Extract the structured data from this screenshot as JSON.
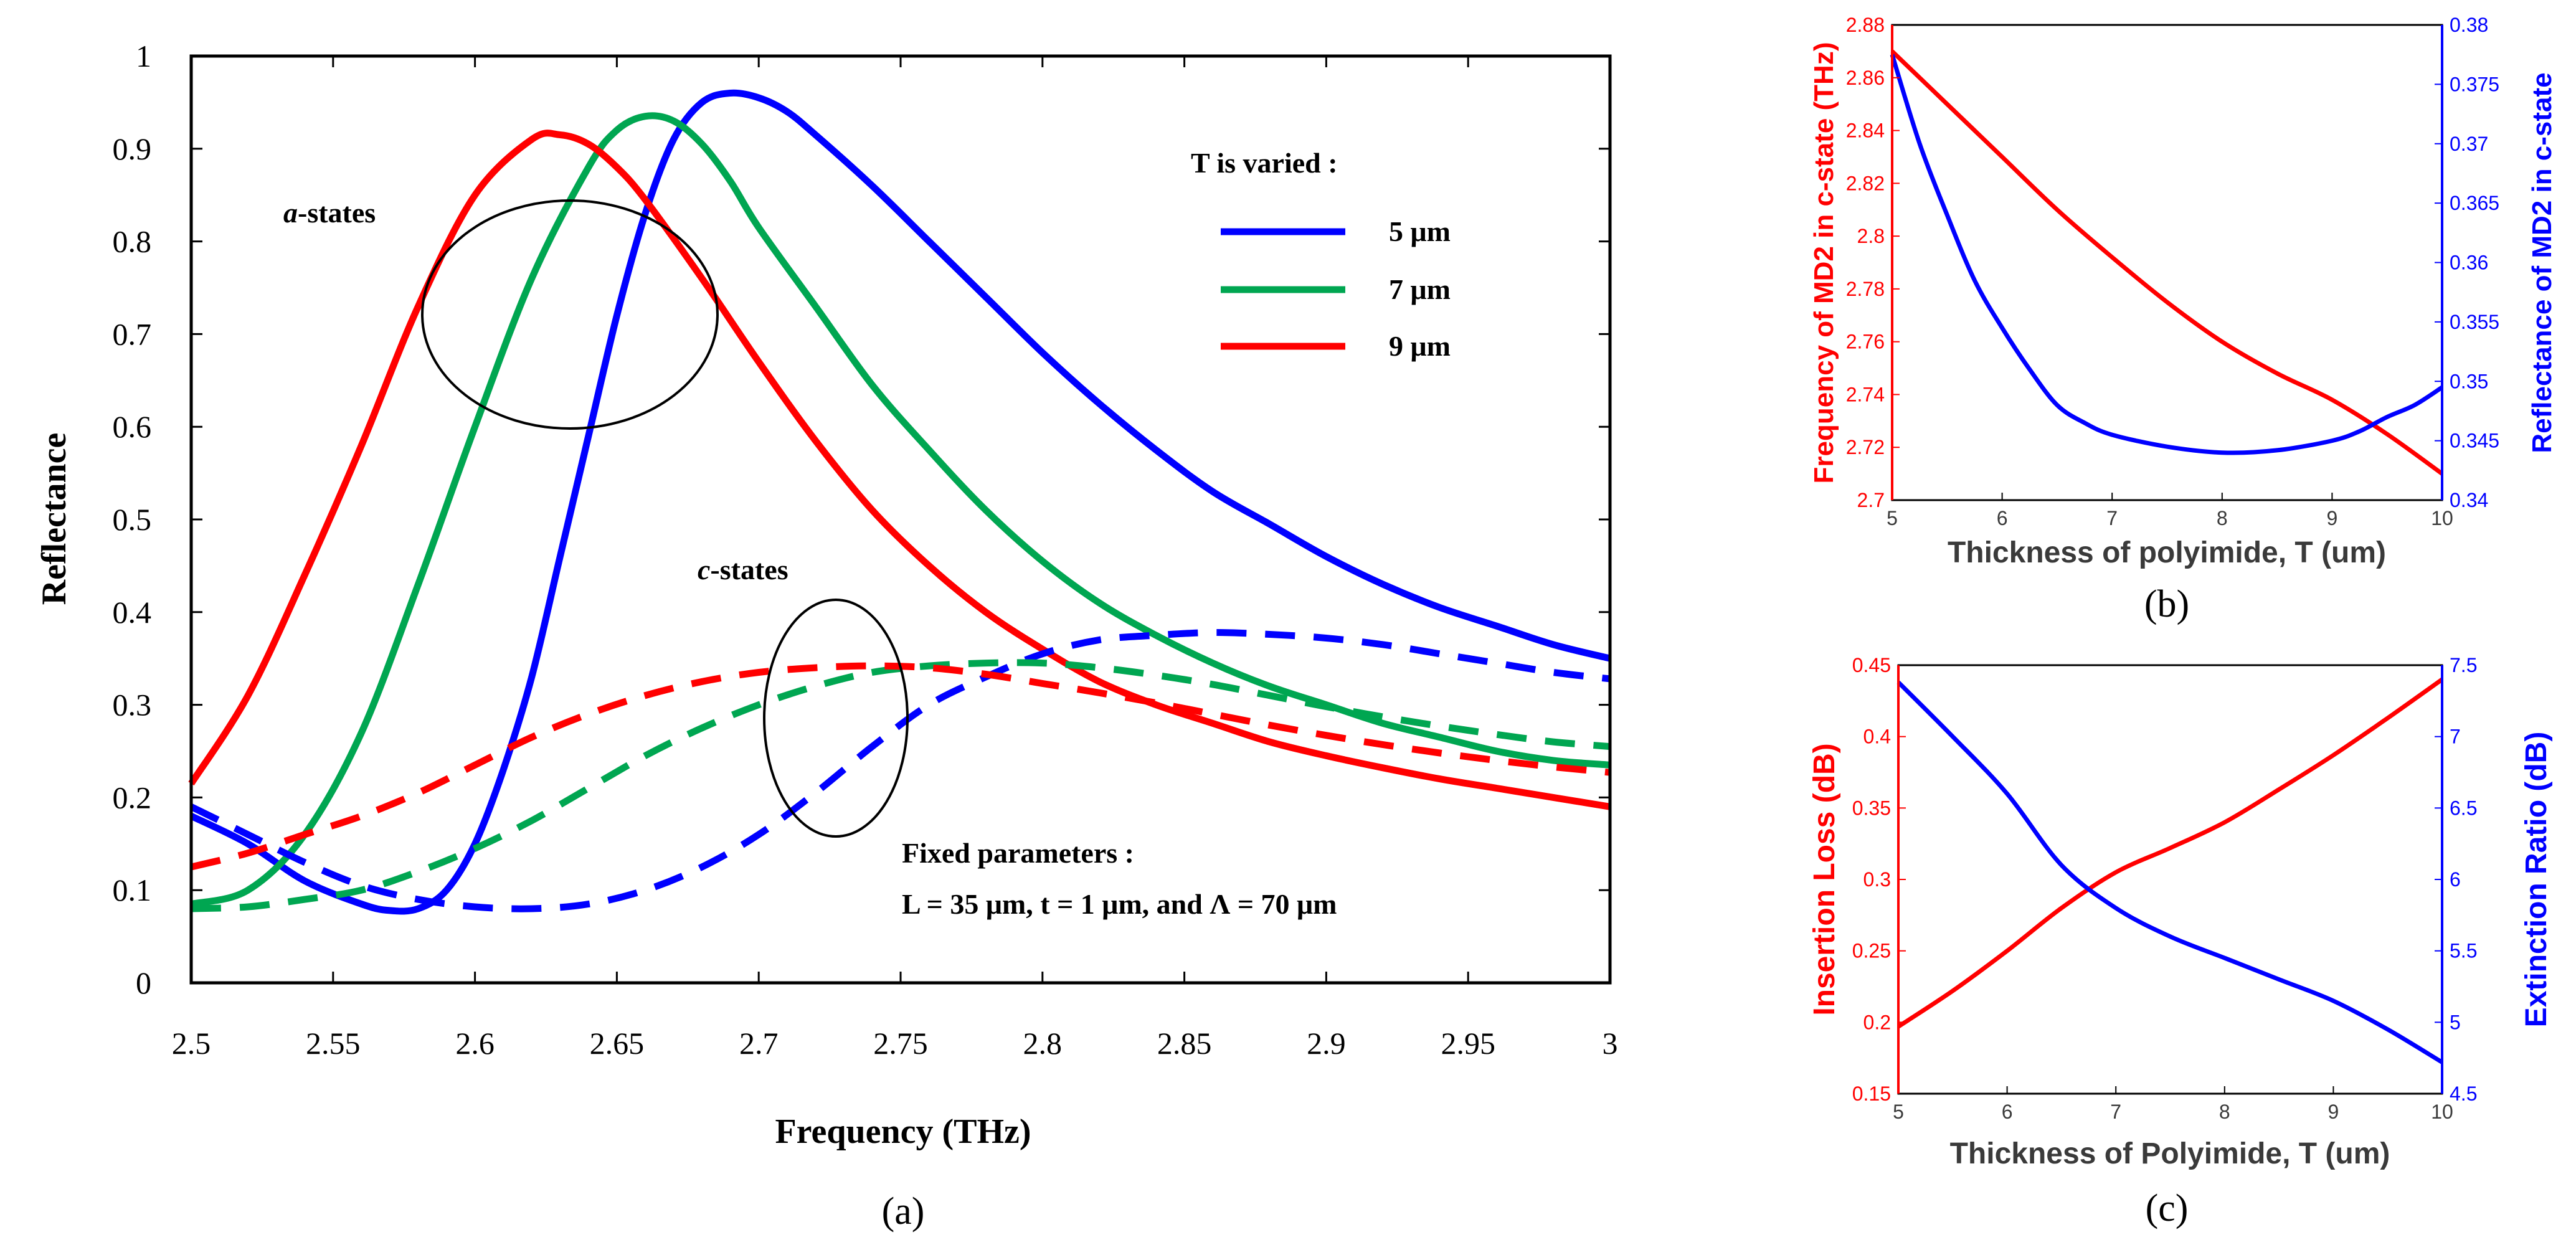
{
  "chart_data": [
    {
      "panel": "a",
      "type": "line",
      "panel_label": "(a)",
      "xlabel": "Frequency (THz)",
      "ylabel": "Reflectance",
      "xlim": [
        2.5,
        3.0
      ],
      "ylim": [
        0,
        1.0
      ],
      "xticks": [
        2.5,
        2.55,
        2.6,
        2.65,
        2.7,
        2.75,
        2.8,
        2.85,
        2.9,
        2.95,
        3.0
      ],
      "xtick_labels": [
        "2.5",
        "2.55",
        "2.6",
        "2.65",
        "2.7",
        "2.75",
        "2.8",
        "2.85",
        "2.9",
        "2.95",
        "3"
      ],
      "yticks": [
        0,
        0.1,
        0.2,
        0.3,
        0.4,
        0.5,
        0.6,
        0.7,
        0.8,
        0.9,
        1.0
      ],
      "ytick_labels": [
        "0",
        "0.1",
        "0.2",
        "0.3",
        "0.4",
        "0.5",
        "0.6",
        "0.7",
        "0.8",
        "0.9",
        "1"
      ],
      "legend": {
        "title": "T is varied :",
        "position": "top-right",
        "entries": [
          {
            "label": "5 μm",
            "color": "#0000ff"
          },
          {
            "label": "7 μm",
            "color": "#00a651"
          },
          {
            "label": "9 μm",
            "color": "#ff0000"
          }
        ]
      },
      "annotations": {
        "a_states": {
          "prefix": "a",
          "suffix": "-states"
        },
        "c_states": {
          "prefix": "c",
          "suffix": "-states"
        },
        "fixed_title": "Fixed parameters :",
        "fixed_params": "L = 35 μm, t = 1 μm, and Λ = 70 μm"
      },
      "series": [
        {
          "name": "5 μm a-state",
          "color": "#0000ff",
          "style": "solid",
          "x": [
            2.5,
            2.52,
            2.54,
            2.56,
            2.57,
            2.58,
            2.59,
            2.6,
            2.61,
            2.62,
            2.63,
            2.64,
            2.65,
            2.66,
            2.67,
            2.68,
            2.69,
            2.7,
            2.71,
            2.72,
            2.74,
            2.76,
            2.78,
            2.8,
            2.82,
            2.84,
            2.86,
            2.88,
            2.9,
            2.92,
            2.94,
            2.96,
            2.98,
            3.0
          ],
          "y": [
            0.18,
            0.15,
            0.11,
            0.085,
            0.078,
            0.08,
            0.1,
            0.15,
            0.23,
            0.33,
            0.46,
            0.59,
            0.72,
            0.83,
            0.91,
            0.95,
            0.96,
            0.955,
            0.94,
            0.915,
            0.86,
            0.8,
            0.74,
            0.68,
            0.625,
            0.575,
            0.53,
            0.495,
            0.46,
            0.43,
            0.405,
            0.385,
            0.365,
            0.35
          ]
        },
        {
          "name": "7 μm a-state",
          "color": "#00a651",
          "style": "solid",
          "x": [
            2.5,
            2.52,
            2.54,
            2.56,
            2.58,
            2.6,
            2.62,
            2.64,
            2.65,
            2.66,
            2.67,
            2.68,
            2.69,
            2.7,
            2.72,
            2.74,
            2.76,
            2.78,
            2.8,
            2.82,
            2.84,
            2.86,
            2.88,
            2.9,
            2.92,
            2.94,
            2.96,
            2.98,
            3.0
          ],
          "y": [
            0.085,
            0.1,
            0.16,
            0.27,
            0.43,
            0.6,
            0.76,
            0.88,
            0.92,
            0.935,
            0.93,
            0.905,
            0.865,
            0.815,
            0.73,
            0.645,
            0.575,
            0.51,
            0.455,
            0.41,
            0.375,
            0.345,
            0.32,
            0.3,
            0.28,
            0.265,
            0.25,
            0.24,
            0.235
          ]
        },
        {
          "name": "9 μm a-state",
          "color": "#ff0000",
          "style": "solid",
          "x": [
            2.5,
            2.52,
            2.54,
            2.56,
            2.58,
            2.6,
            2.62,
            2.63,
            2.64,
            2.65,
            2.66,
            2.68,
            2.7,
            2.72,
            2.74,
            2.76,
            2.78,
            2.8,
            2.82,
            2.84,
            2.86,
            2.88,
            2.9,
            2.92,
            2.94,
            2.96,
            2.98,
            3.0
          ],
          "y": [
            0.215,
            0.31,
            0.44,
            0.58,
            0.73,
            0.85,
            0.91,
            0.915,
            0.905,
            0.88,
            0.845,
            0.76,
            0.67,
            0.585,
            0.51,
            0.45,
            0.4,
            0.36,
            0.325,
            0.3,
            0.28,
            0.26,
            0.245,
            0.232,
            0.22,
            0.21,
            0.2,
            0.19
          ]
        },
        {
          "name": "5 μm c-state",
          "color": "#0000ff",
          "style": "dashed",
          "x": [
            2.5,
            2.52,
            2.54,
            2.56,
            2.58,
            2.6,
            2.62,
            2.64,
            2.66,
            2.68,
            2.7,
            2.72,
            2.74,
            2.76,
            2.78,
            2.8,
            2.82,
            2.84,
            2.86,
            2.88,
            2.9,
            2.92,
            2.94,
            2.96,
            2.98,
            3.0
          ],
          "y": [
            0.19,
            0.16,
            0.13,
            0.105,
            0.09,
            0.082,
            0.08,
            0.085,
            0.1,
            0.125,
            0.16,
            0.205,
            0.255,
            0.3,
            0.33,
            0.355,
            0.37,
            0.375,
            0.378,
            0.376,
            0.372,
            0.365,
            0.355,
            0.345,
            0.335,
            0.328
          ]
        },
        {
          "name": "7 μm c-state",
          "color": "#00a651",
          "style": "dashed",
          "x": [
            2.5,
            2.52,
            2.54,
            2.56,
            2.58,
            2.6,
            2.62,
            2.64,
            2.66,
            2.68,
            2.7,
            2.72,
            2.74,
            2.76,
            2.78,
            2.8,
            2.82,
            2.84,
            2.86,
            2.88,
            2.9,
            2.92,
            2.94,
            2.96,
            2.98,
            3.0
          ],
          "y": [
            0.08,
            0.082,
            0.09,
            0.1,
            0.12,
            0.145,
            0.175,
            0.21,
            0.245,
            0.275,
            0.3,
            0.32,
            0.335,
            0.342,
            0.345,
            0.345,
            0.34,
            0.332,
            0.322,
            0.31,
            0.298,
            0.287,
            0.277,
            0.268,
            0.26,
            0.255
          ]
        },
        {
          "name": "9 μm c-state",
          "color": "#ff0000",
          "style": "dashed",
          "x": [
            2.5,
            2.52,
            2.54,
            2.56,
            2.58,
            2.6,
            2.62,
            2.64,
            2.66,
            2.68,
            2.7,
            2.72,
            2.74,
            2.76,
            2.78,
            2.8,
            2.82,
            2.84,
            2.86,
            2.88,
            2.9,
            2.92,
            2.94,
            2.96,
            2.98,
            3.0
          ],
          "y": [
            0.125,
            0.14,
            0.16,
            0.18,
            0.205,
            0.235,
            0.265,
            0.29,
            0.31,
            0.325,
            0.335,
            0.34,
            0.342,
            0.34,
            0.333,
            0.323,
            0.313,
            0.302,
            0.29,
            0.278,
            0.267,
            0.257,
            0.248,
            0.24,
            0.233,
            0.227
          ]
        }
      ]
    },
    {
      "panel": "b",
      "type": "line",
      "panel_label": "(b)",
      "xlabel": "Thickness of polyimide, T (um)",
      "ylabel_left": "Frequency of MD2 in c-state (THz)",
      "ylabel_right": "Reflectance of MD2 in c-state",
      "xlim": [
        5,
        10
      ],
      "ylim_left": [
        2.7,
        2.88
      ],
      "ylim_right": [
        0.34,
        0.38
      ],
      "xticks": [
        5,
        6,
        7,
        8,
        9,
        10
      ],
      "xtick_labels": [
        "5",
        "6",
        "7",
        "8",
        "9",
        "10"
      ],
      "yticks_left": [
        2.7,
        2.72,
        2.74,
        2.76,
        2.78,
        2.8,
        2.82,
        2.84,
        2.86,
        2.88
      ],
      "ytick_labels_left": [
        "2.7",
        "2.72",
        "2.74",
        "2.76",
        "2.78",
        "2.8",
        "2.82",
        "2.84",
        "2.86",
        "2.88"
      ],
      "yticks_right": [
        0.34,
        0.345,
        0.35,
        0.355,
        0.36,
        0.365,
        0.37,
        0.375,
        0.38
      ],
      "ytick_labels_right": [
        "0.34",
        "0.345",
        "0.35",
        "0.355",
        "0.36",
        "0.365",
        "0.37",
        "0.375",
        "0.38"
      ],
      "left_color": "#ff0000",
      "right_color": "#0000ff",
      "series": [
        {
          "name": "Frequency of MD2",
          "axis": "left",
          "color": "#ff0000",
          "x": [
            5,
            5.5,
            6,
            6.5,
            7,
            7.5,
            8,
            8.5,
            9,
            9.5,
            10
          ],
          "y": [
            2.87,
            2.85,
            2.83,
            2.81,
            2.792,
            2.775,
            2.76,
            2.748,
            2.738,
            2.725,
            2.71
          ]
        },
        {
          "name": "Reflectance of MD2",
          "axis": "right",
          "color": "#0000ff",
          "x": [
            5,
            5.25,
            5.5,
            5.75,
            6,
            6.25,
            6.5,
            6.75,
            7,
            7.5,
            8,
            8.5,
            9,
            9.25,
            9.5,
            9.75,
            10
          ],
          "y": [
            0.3775,
            0.37,
            0.364,
            0.3585,
            0.3545,
            0.351,
            0.348,
            0.3465,
            0.3455,
            0.3445,
            0.344,
            0.3442,
            0.345,
            0.3458,
            0.347,
            0.348,
            0.3495
          ]
        }
      ]
    },
    {
      "panel": "c",
      "type": "line",
      "panel_label": "(c)",
      "xlabel": "Thickness of Polyimide, T (um)",
      "ylabel_left": "Insertion Loss (dB)",
      "ylabel_right": "Extinction Ratio (dB)",
      "xlim": [
        5,
        10
      ],
      "ylim_left": [
        0.15,
        0.45
      ],
      "ylim_right": [
        4.5,
        7.5
      ],
      "xticks": [
        5,
        6,
        7,
        8,
        9,
        10
      ],
      "xtick_labels": [
        "5",
        "6",
        "7",
        "8",
        "9",
        "10"
      ],
      "yticks_left": [
        0.15,
        0.2,
        0.25,
        0.3,
        0.35,
        0.4,
        0.45
      ],
      "ytick_labels_left": [
        "0.15",
        "0.2",
        "0.25",
        "0.3",
        "0.35",
        "0.4",
        "0.45"
      ],
      "yticks_right": [
        4.5,
        5,
        5.5,
        6,
        6.5,
        7,
        7.5
      ],
      "ytick_labels_right": [
        "4.5",
        "5",
        "5.5",
        "6",
        "6.5",
        "7",
        "7.5"
      ],
      "left_color": "#ff0000",
      "right_color": "#0000ff",
      "series": [
        {
          "name": "Insertion Loss",
          "axis": "left",
          "color": "#ff0000",
          "x": [
            5,
            5.5,
            6,
            6.5,
            7,
            7.5,
            8,
            8.5,
            9,
            9.5,
            10
          ],
          "y": [
            0.197,
            0.222,
            0.25,
            0.28,
            0.305,
            0.322,
            0.34,
            0.363,
            0.387,
            0.413,
            0.44
          ]
        },
        {
          "name": "Extinction Ratio",
          "axis": "right",
          "color": "#0000ff",
          "x": [
            5,
            5.5,
            6,
            6.5,
            7,
            7.5,
            8,
            8.5,
            9,
            9.5,
            10
          ],
          "y": [
            7.38,
            7.0,
            6.6,
            6.1,
            5.8,
            5.6,
            5.45,
            5.3,
            5.15,
            4.95,
            4.72
          ]
        }
      ]
    }
  ]
}
